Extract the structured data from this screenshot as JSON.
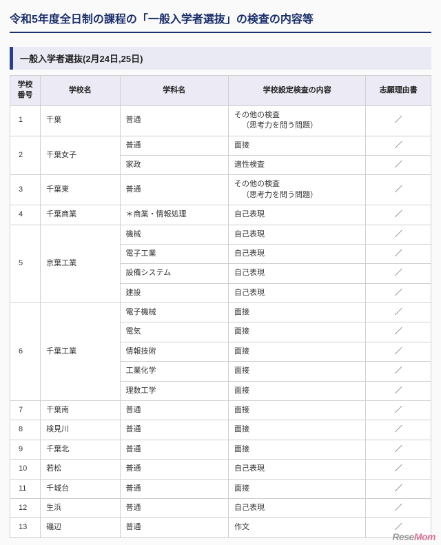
{
  "title": "令和5年度全日制の課程の「一般入学者選抜」の検査の内容等",
  "subhead": "一般入学者選抜(2月24日,25日)",
  "columns": {
    "num": "学校\n番号",
    "school": "学校名",
    "dept": "学科名",
    "exam": "学校設定検査の内容",
    "reason": "志願理由書"
  },
  "watermark_a": "Rese",
  "watermark_b": "Mom",
  "schools": [
    {
      "num": "1",
      "name": "千葉",
      "rows": [
        {
          "dept": "普通",
          "exam": "その他の検査",
          "exam_sub": "（思考力を問う問題）",
          "reason": "／"
        }
      ]
    },
    {
      "num": "2",
      "name": "千葉女子",
      "rows": [
        {
          "dept": "普通",
          "exam": "面接",
          "reason": "／"
        },
        {
          "dept": "家政",
          "exam": "適性検査",
          "reason": "／"
        }
      ]
    },
    {
      "num": "3",
      "name": "千葉東",
      "rows": [
        {
          "dept": "普通",
          "exam": "その他の検査",
          "exam_sub": "（思考力を問う問題）",
          "reason": "／"
        }
      ]
    },
    {
      "num": "4",
      "name": "千葉商業",
      "rows": [
        {
          "dept": "＊商業・情報処理",
          "exam": "自己表現",
          "reason": "／"
        }
      ]
    },
    {
      "num": "5",
      "name": "京葉工業",
      "rows": [
        {
          "dept": "機械",
          "exam": "自己表現",
          "reason": "／"
        },
        {
          "dept": "電子工業",
          "exam": "自己表現",
          "reason": "／"
        },
        {
          "dept": "設備システム",
          "exam": "自己表現",
          "reason": "／"
        },
        {
          "dept": "建設",
          "exam": "自己表現",
          "reason": "／"
        }
      ]
    },
    {
      "num": "6",
      "name": "千葉工業",
      "rows": [
        {
          "dept": "電子機械",
          "exam": "面接",
          "reason": "／"
        },
        {
          "dept": "電気",
          "exam": "面接",
          "reason": "／"
        },
        {
          "dept": "情報技術",
          "exam": "面接",
          "reason": "／"
        },
        {
          "dept": "工業化学",
          "exam": "面接",
          "reason": "／"
        },
        {
          "dept": "理数工学",
          "exam": "面接",
          "reason": "／"
        }
      ]
    },
    {
      "num": "7",
      "name": "千葉南",
      "rows": [
        {
          "dept": "普通",
          "exam": "面接",
          "reason": "／"
        }
      ]
    },
    {
      "num": "8",
      "name": "検見川",
      "rows": [
        {
          "dept": "普通",
          "exam": "面接",
          "reason": "／"
        }
      ]
    },
    {
      "num": "9",
      "name": "千葉北",
      "rows": [
        {
          "dept": "普通",
          "exam": "面接",
          "reason": "／"
        }
      ]
    },
    {
      "num": "10",
      "name": "若松",
      "rows": [
        {
          "dept": "普通",
          "exam": "自己表現",
          "reason": "／"
        }
      ]
    },
    {
      "num": "11",
      "name": "千城台",
      "rows": [
        {
          "dept": "普通",
          "exam": "面接",
          "reason": "／"
        }
      ]
    },
    {
      "num": "12",
      "name": "生浜",
      "rows": [
        {
          "dept": "普通",
          "exam": "自己表現",
          "reason": "／"
        }
      ]
    },
    {
      "num": "13",
      "name": "磯辺",
      "rows": [
        {
          "dept": "普通",
          "exam": "作文",
          "reason": "／"
        }
      ]
    }
  ]
}
